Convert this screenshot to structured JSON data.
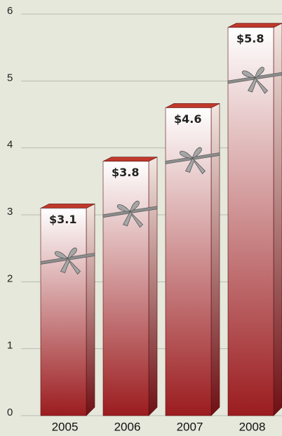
{
  "chart_data": {
    "type": "bar",
    "categories": [
      "2005",
      "2006",
      "2007",
      "2008"
    ],
    "values": [
      3.1,
      3.8,
      4.6,
      5.8
    ],
    "value_labels": [
      "$3.1",
      "$3.8",
      "$4.6",
      "$5.8"
    ],
    "color": "#9b1c1f",
    "ylim": [
      0,
      6
    ],
    "yticks": [
      0,
      1,
      2,
      3,
      4,
      5,
      6
    ],
    "grid": true
  }
}
